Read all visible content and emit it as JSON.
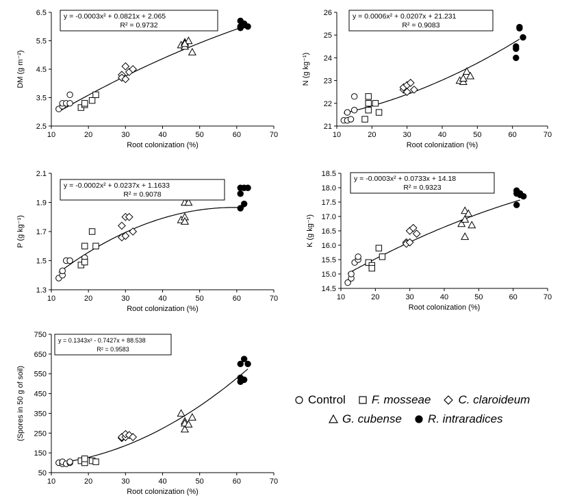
{
  "chart_data": [
    {
      "id": "dm",
      "type": "scatter",
      "equation": "y = -0.0003x² + 0.0821x + 2.065",
      "r2": "R² = 0.9732",
      "xlabel": "Root colonization (%)",
      "ylabel": "DM (g m⁻²)",
      "xlim": [
        10,
        70
      ],
      "ylim": [
        2.5,
        6.5
      ],
      "xticks": [
        10,
        20,
        30,
        40,
        50,
        60,
        70
      ],
      "yticks": [
        2.5,
        3.5,
        4.5,
        5.5,
        6.5
      ],
      "tick_decimals": 1,
      "fit": [
        -0.0003,
        0.0821,
        2.065
      ],
      "fit_range": [
        12,
        62
      ],
      "series": [
        {
          "name": "Control",
          "marker": "circle-open",
          "points": [
            [
              12,
              3.1
            ],
            [
              13,
              3.2
            ],
            [
              13,
              3.3
            ],
            [
              14,
              3.3
            ],
            [
              15,
              3.3
            ],
            [
              15,
              3.6
            ]
          ]
        },
        {
          "name": "F. mosseae",
          "marker": "square-open",
          "points": [
            [
              18,
              3.15
            ],
            [
              19,
              3.25
            ],
            [
              19,
              3.3
            ],
            [
              21,
              3.4
            ],
            [
              22,
              3.6
            ]
          ]
        },
        {
          "name": "C. claroideum",
          "marker": "diamond-open",
          "points": [
            [
              29,
              4.3
            ],
            [
              29,
              4.2
            ],
            [
              30,
              4.15
            ],
            [
              30,
              4.6
            ],
            [
              31,
              4.4
            ],
            [
              32,
              4.5
            ]
          ]
        },
        {
          "name": "G. cubense",
          "marker": "triangle-open",
          "points": [
            [
              45,
              5.35
            ],
            [
              46,
              5.3
            ],
            [
              46,
              5.45
            ],
            [
              47,
              5.5
            ],
            [
              48,
              5.1
            ],
            [
              46,
              5.4
            ]
          ]
        },
        {
          "name": "R. intraradices",
          "marker": "circle-filled",
          "points": [
            [
              61,
              6.2
            ],
            [
              61,
              5.95
            ],
            [
              62,
              6.1
            ],
            [
              62,
              6.05
            ],
            [
              63,
              6.0
            ],
            [
              61,
              6.0
            ]
          ]
        }
      ]
    },
    {
      "id": "n",
      "type": "scatter",
      "equation": "y = 0.0006x² + 0.0207x + 21.231",
      "r2": "R² = 0.9083",
      "xlabel": "Root colonization (%)",
      "ylabel": "N (g kg⁻¹)",
      "xlim": [
        10,
        70
      ],
      "ylim": [
        21,
        26
      ],
      "xticks": [
        10,
        20,
        30,
        40,
        50,
        60,
        70
      ],
      "yticks": [
        21,
        22,
        23,
        24,
        25,
        26
      ],
      "tick_decimals": 0,
      "fit": [
        0.0006,
        0.0207,
        21.231
      ],
      "fit_range": [
        12,
        62
      ],
      "series": [
        {
          "name": "Control",
          "marker": "circle-open",
          "points": [
            [
              12,
              21.25
            ],
            [
              13,
              21.25
            ],
            [
              14,
              21.3
            ],
            [
              15,
              22.3
            ],
            [
              15,
              21.7
            ],
            [
              13,
              21.6
            ]
          ]
        },
        {
          "name": "F. mosseae",
          "marker": "square-open",
          "points": [
            [
              18,
              21.3
            ],
            [
              19,
              21.7
            ],
            [
              19,
              22.0
            ],
            [
              19,
              22.3
            ],
            [
              21,
              22.0
            ],
            [
              22,
              21.6
            ]
          ]
        },
        {
          "name": "C. claroideum",
          "marker": "diamond-open",
          "points": [
            [
              29,
              22.6
            ],
            [
              29,
              22.7
            ],
            [
              30,
              22.5
            ],
            [
              30,
              22.8
            ],
            [
              31,
              22.9
            ],
            [
              32,
              22.6
            ]
          ]
        },
        {
          "name": "G. cubense",
          "marker": "triangle-open",
          "points": [
            [
              45,
              23.0
            ],
            [
              46,
              22.95
            ],
            [
              46,
              23.1
            ],
            [
              47,
              23.4
            ],
            [
              48,
              23.2
            ]
          ]
        },
        {
          "name": "R. intraradices",
          "marker": "circle-filled",
          "points": [
            [
              61,
              24.5
            ],
            [
              61,
              24.0
            ],
            [
              61,
              24.4
            ],
            [
              62,
              25.3
            ],
            [
              62,
              25.35
            ],
            [
              63,
              24.9
            ]
          ]
        }
      ]
    },
    {
      "id": "p",
      "type": "scatter",
      "equation": "y = -0.0002x² + 0.0237x + 1.1633",
      "r2": "R² = 0.9078",
      "xlabel": "Root colonization (%)",
      "ylabel": "P (g kg⁻¹)",
      "xlim": [
        10,
        70
      ],
      "ylim": [
        1.3,
        2.1
      ],
      "xticks": [
        10,
        20,
        30,
        40,
        50,
        60,
        70
      ],
      "yticks": [
        1.3,
        1.5,
        1.7,
        1.9,
        2.1
      ],
      "tick_decimals": 1,
      "fit": [
        -0.0002,
        0.0237,
        1.1633
      ],
      "fit_range": [
        12,
        62
      ],
      "series": [
        {
          "name": "Control",
          "marker": "circle-open",
          "points": [
            [
              12,
              1.38
            ],
            [
              13,
              1.4
            ],
            [
              13,
              1.43
            ],
            [
              14,
              1.5
            ],
            [
              15,
              1.5
            ],
            [
              19,
              1.52
            ]
          ]
        },
        {
          "name": "F. mosseae",
          "marker": "square-open",
          "points": [
            [
              18,
              1.47
            ],
            [
              19,
              1.6
            ],
            [
              19,
              1.49
            ],
            [
              21,
              1.7
            ],
            [
              22,
              1.6
            ]
          ]
        },
        {
          "name": "C. claroideum",
          "marker": "diamond-open",
          "points": [
            [
              29,
              1.74
            ],
            [
              29,
              1.66
            ],
            [
              30,
              1.67
            ],
            [
              30,
              1.8
            ],
            [
              31,
              1.8
            ],
            [
              32,
              1.7
            ]
          ]
        },
        {
          "name": "G. cubense",
          "marker": "triangle-open",
          "points": [
            [
              45,
              1.78
            ],
            [
              46,
              1.8
            ],
            [
              46,
              1.77
            ],
            [
              46,
              1.9
            ],
            [
              47,
              1.9
            ],
            [
              48,
              2.0
            ]
          ]
        },
        {
          "name": "R. intraradices",
          "marker": "circle-filled",
          "points": [
            [
              61,
              2.0
            ],
            [
              61,
              1.96
            ],
            [
              61,
              1.86
            ],
            [
              62,
              1.89
            ],
            [
              62,
              2.0
            ],
            [
              63,
              2.0
            ]
          ]
        }
      ]
    },
    {
      "id": "k",
      "type": "scatter",
      "equation": "y = -0.0003x² + 0.0733x + 14.18",
      "r2": "R² = 0.9323",
      "xlabel": "Root colonization (%)",
      "ylabel": "K (g kg⁻¹)",
      "xlim": [
        10,
        70
      ],
      "ylim": [
        14.5,
        18.5
      ],
      "xticks": [
        10,
        20,
        30,
        40,
        50,
        60,
        70
      ],
      "yticks": [
        14.5,
        15.0,
        15.5,
        16.0,
        16.5,
        17.0,
        17.5,
        18.0,
        18.5
      ],
      "tick_decimals": 1,
      "fit": [
        -0.0003,
        0.0733,
        14.18
      ],
      "fit_range": [
        12,
        62
      ],
      "series": [
        {
          "name": "Control",
          "marker": "circle-open",
          "points": [
            [
              12,
              14.7
            ],
            [
              13,
              14.85
            ],
            [
              13,
              15.0
            ],
            [
              14,
              15.4
            ],
            [
              15,
              15.5
            ],
            [
              15,
              15.6
            ]
          ]
        },
        {
          "name": "F. mosseae",
          "marker": "square-open",
          "points": [
            [
              18,
              15.4
            ],
            [
              19,
              15.3
            ],
            [
              19,
              15.2
            ],
            [
              21,
              15.9
            ],
            [
              22,
              15.6
            ]
          ]
        },
        {
          "name": "C. claroideum",
          "marker": "diamond-open",
          "points": [
            [
              29,
              16.1
            ],
            [
              29,
              16.05
            ],
            [
              30,
              16.1
            ],
            [
              30,
              16.5
            ],
            [
              31,
              16.6
            ],
            [
              32,
              16.4
            ]
          ]
        },
        {
          "name": "G. cubense",
          "marker": "triangle-open",
          "points": [
            [
              45,
              16.75
            ],
            [
              46,
              16.3
            ],
            [
              46,
              16.9
            ],
            [
              46,
              17.2
            ],
            [
              47,
              17.1
            ],
            [
              48,
              16.7
            ]
          ]
        },
        {
          "name": "R. intraradices",
          "marker": "circle-filled",
          "points": [
            [
              61,
              17.9
            ],
            [
              61,
              17.8
            ],
            [
              61,
              17.4
            ],
            [
              62,
              17.75
            ],
            [
              62,
              17.8
            ],
            [
              63,
              17.7
            ]
          ]
        }
      ]
    },
    {
      "id": "spores",
      "type": "scatter",
      "equation": "y = 0.1343x² - 0.7427x + 88.538",
      "r2": "R² = 0.9583",
      "xlabel": "Root colonization (%)",
      "ylabel": "(Spores in 50 g of soil)",
      "xlim": [
        10,
        70
      ],
      "ylim": [
        50,
        750
      ],
      "xticks": [
        10,
        20,
        30,
        40,
        50,
        60,
        70
      ],
      "yticks": [
        50,
        150,
        250,
        350,
        450,
        550,
        650,
        750
      ],
      "tick_decimals": 0,
      "fit": [
        0.1343,
        -0.7427,
        88.538
      ],
      "fit_range": [
        12,
        63
      ],
      "series": [
        {
          "name": "Control",
          "marker": "circle-open",
          "points": [
            [
              12,
              100
            ],
            [
              13,
              95
            ],
            [
              13,
              105
            ],
            [
              14,
              95
            ],
            [
              15,
              100
            ],
            [
              15,
              105
            ]
          ]
        },
        {
          "name": "F. mosseae",
          "marker": "square-open",
          "points": [
            [
              18,
              110
            ],
            [
              19,
              100
            ],
            [
              19,
              120
            ],
            [
              21,
              110
            ],
            [
              22,
              105
            ]
          ]
        },
        {
          "name": "C. claroideum",
          "marker": "diamond-open",
          "points": [
            [
              29,
              225
            ],
            [
              29,
              230
            ],
            [
              30,
              230
            ],
            [
              30,
              245
            ],
            [
              31,
              240
            ],
            [
              32,
              230
            ]
          ]
        },
        {
          "name": "G. cubense",
          "marker": "triangle-open",
          "points": [
            [
              45,
              350
            ],
            [
              46,
              310
            ],
            [
              46,
              270
            ],
            [
              46,
              300
            ],
            [
              47,
              295
            ],
            [
              48,
              330
            ]
          ]
        },
        {
          "name": "R. intraradices",
          "marker": "circle-filled",
          "points": [
            [
              61,
              510
            ],
            [
              61,
              530
            ],
            [
              61,
              600
            ],
            [
              62,
              520
            ],
            [
              62,
              625
            ],
            [
              63,
              600
            ]
          ]
        }
      ]
    }
  ],
  "legend": {
    "control": "Control",
    "f_mosseae": "F. mosseae",
    "c_claroideum": "C. claroideum",
    "g_cubense": "G. cubense",
    "r_intraradices": "R. intraradices"
  }
}
